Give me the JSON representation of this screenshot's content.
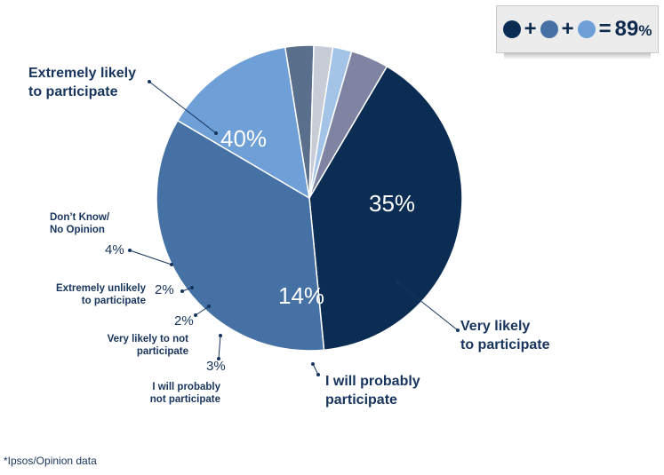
{
  "chart_data": {
    "type": "pie",
    "slices": [
      {
        "label": "Extremely likely\nto participate",
        "value": 40,
        "display": "40%",
        "color": "#0c2d53"
      },
      {
        "label": "Very likely\nto participate",
        "value": 35,
        "display": "35%",
        "color": "#4671a4"
      },
      {
        "label": "I will probably\nparticipate",
        "value": 14,
        "display": "14%",
        "color": "#6e9fd6"
      },
      {
        "label": "I will probably\nnot participate",
        "value": 3,
        "display": "3%",
        "color": "#5a6f8c"
      },
      {
        "label": "Very likely to not\nparticipate",
        "value": 2,
        "display": "2%",
        "color": "#c7ccd6"
      },
      {
        "label": "Extremely unlikely\nto participate",
        "value": 2,
        "display": "2%",
        "color": "#a3c4e7"
      },
      {
        "label": "Don’t Know/\nNo Opinion",
        "value": 4,
        "display": "4%",
        "color": "#7f84a3"
      }
    ]
  },
  "summary": {
    "plus1": "+",
    "plus2": "+",
    "equals": "=",
    "total": "89",
    "pct_sign": "%",
    "colors": [
      "#0c2d53",
      "#4671a4",
      "#6e9fd6"
    ]
  },
  "footnote": "*Ipsos/Opinion data"
}
